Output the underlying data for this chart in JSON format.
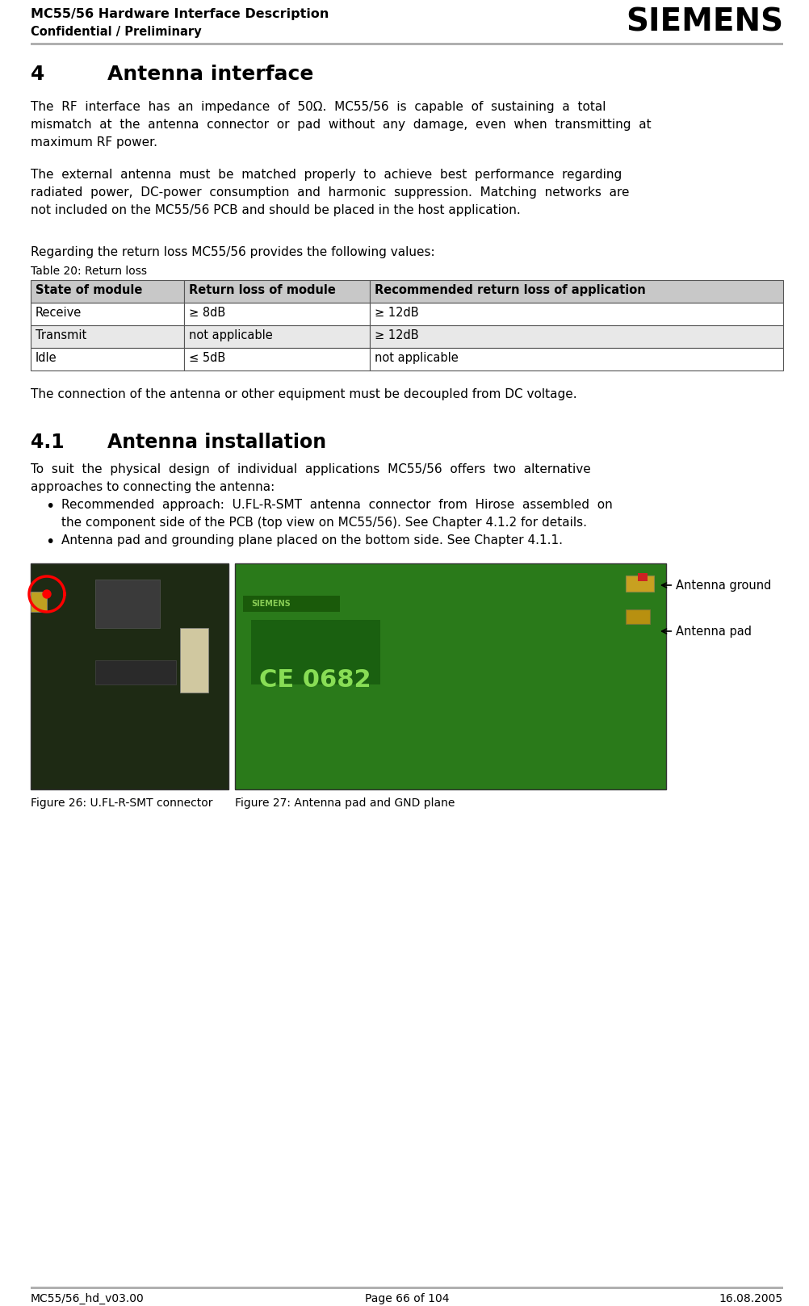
{
  "header_title": "MC55/56 Hardware Interface Description",
  "header_subtitle": "Confidential / Preliminary",
  "siemens_logo": "SIEMENS",
  "footer_left": "MC55/56_hd_v03.00",
  "footer_center": "Page 66 of 104",
  "footer_right": "16.08.2005",
  "para1_lines": [
    "The  RF  interface  has  an  impedance  of  50Ω.  MC55/56  is  capable  of  sustaining  a  total",
    "mismatch  at  the  antenna  connector  or  pad  without  any  damage,  even  when  transmitting  at",
    "maximum RF power."
  ],
  "para2_lines": [
    "The  external  antenna  must  be  matched  properly  to  achieve  best  performance  regarding",
    "radiated  power,  DC-power  consumption  and  harmonic  suppression.  Matching  networks  are",
    "not included on the MC55/56 PCB and should be placed in the host application."
  ],
  "para3": "Regarding the return loss MC55/56 provides the following values:",
  "table_caption": "Table 20: Return loss",
  "table_headers": [
    "State of module",
    "Return loss of module",
    "Recommended return loss of application"
  ],
  "table_rows": [
    [
      "Receive",
      "≥ 8dB",
      "≥ 12dB"
    ],
    [
      "Transmit",
      "not applicable",
      "≥ 12dB"
    ],
    [
      "Idle",
      "≤ 5dB",
      "not applicable"
    ]
  ],
  "table_header_bg": "#c8c8c8",
  "table_alt_bg": "#e8e8e8",
  "table_white_bg": "#ffffff",
  "para4": "The connection of the antenna or other equipment must be decoupled from DC voltage.",
  "para5_lines": [
    "To  suit  the  physical  design  of  individual  applications  MC55/56  offers  two  alternative",
    "approaches to connecting the antenna:"
  ],
  "bullet1_lines": [
    "Recommended  approach:  U.FL-R-SMT  antenna  connector  from  Hirose  assembled  on",
    "the component side of the PCB (top view on MC55/56). See Chapter 4.1.2 for details."
  ],
  "bullet2": "Antenna pad and grounding plane placed on the bottom side. See Chapter 4.1.1.",
  "fig1_caption": "Figure 26: U.FL-R-SMT connector",
  "fig2_caption": "Figure 27: Antenna pad and GND plane",
  "label_antenna_ground": "Antenna ground",
  "label_antenna_pad": "Antenna pad",
  "bg_color": "#ffffff",
  "text_color": "#000000",
  "line_color": "#aaaaaa"
}
